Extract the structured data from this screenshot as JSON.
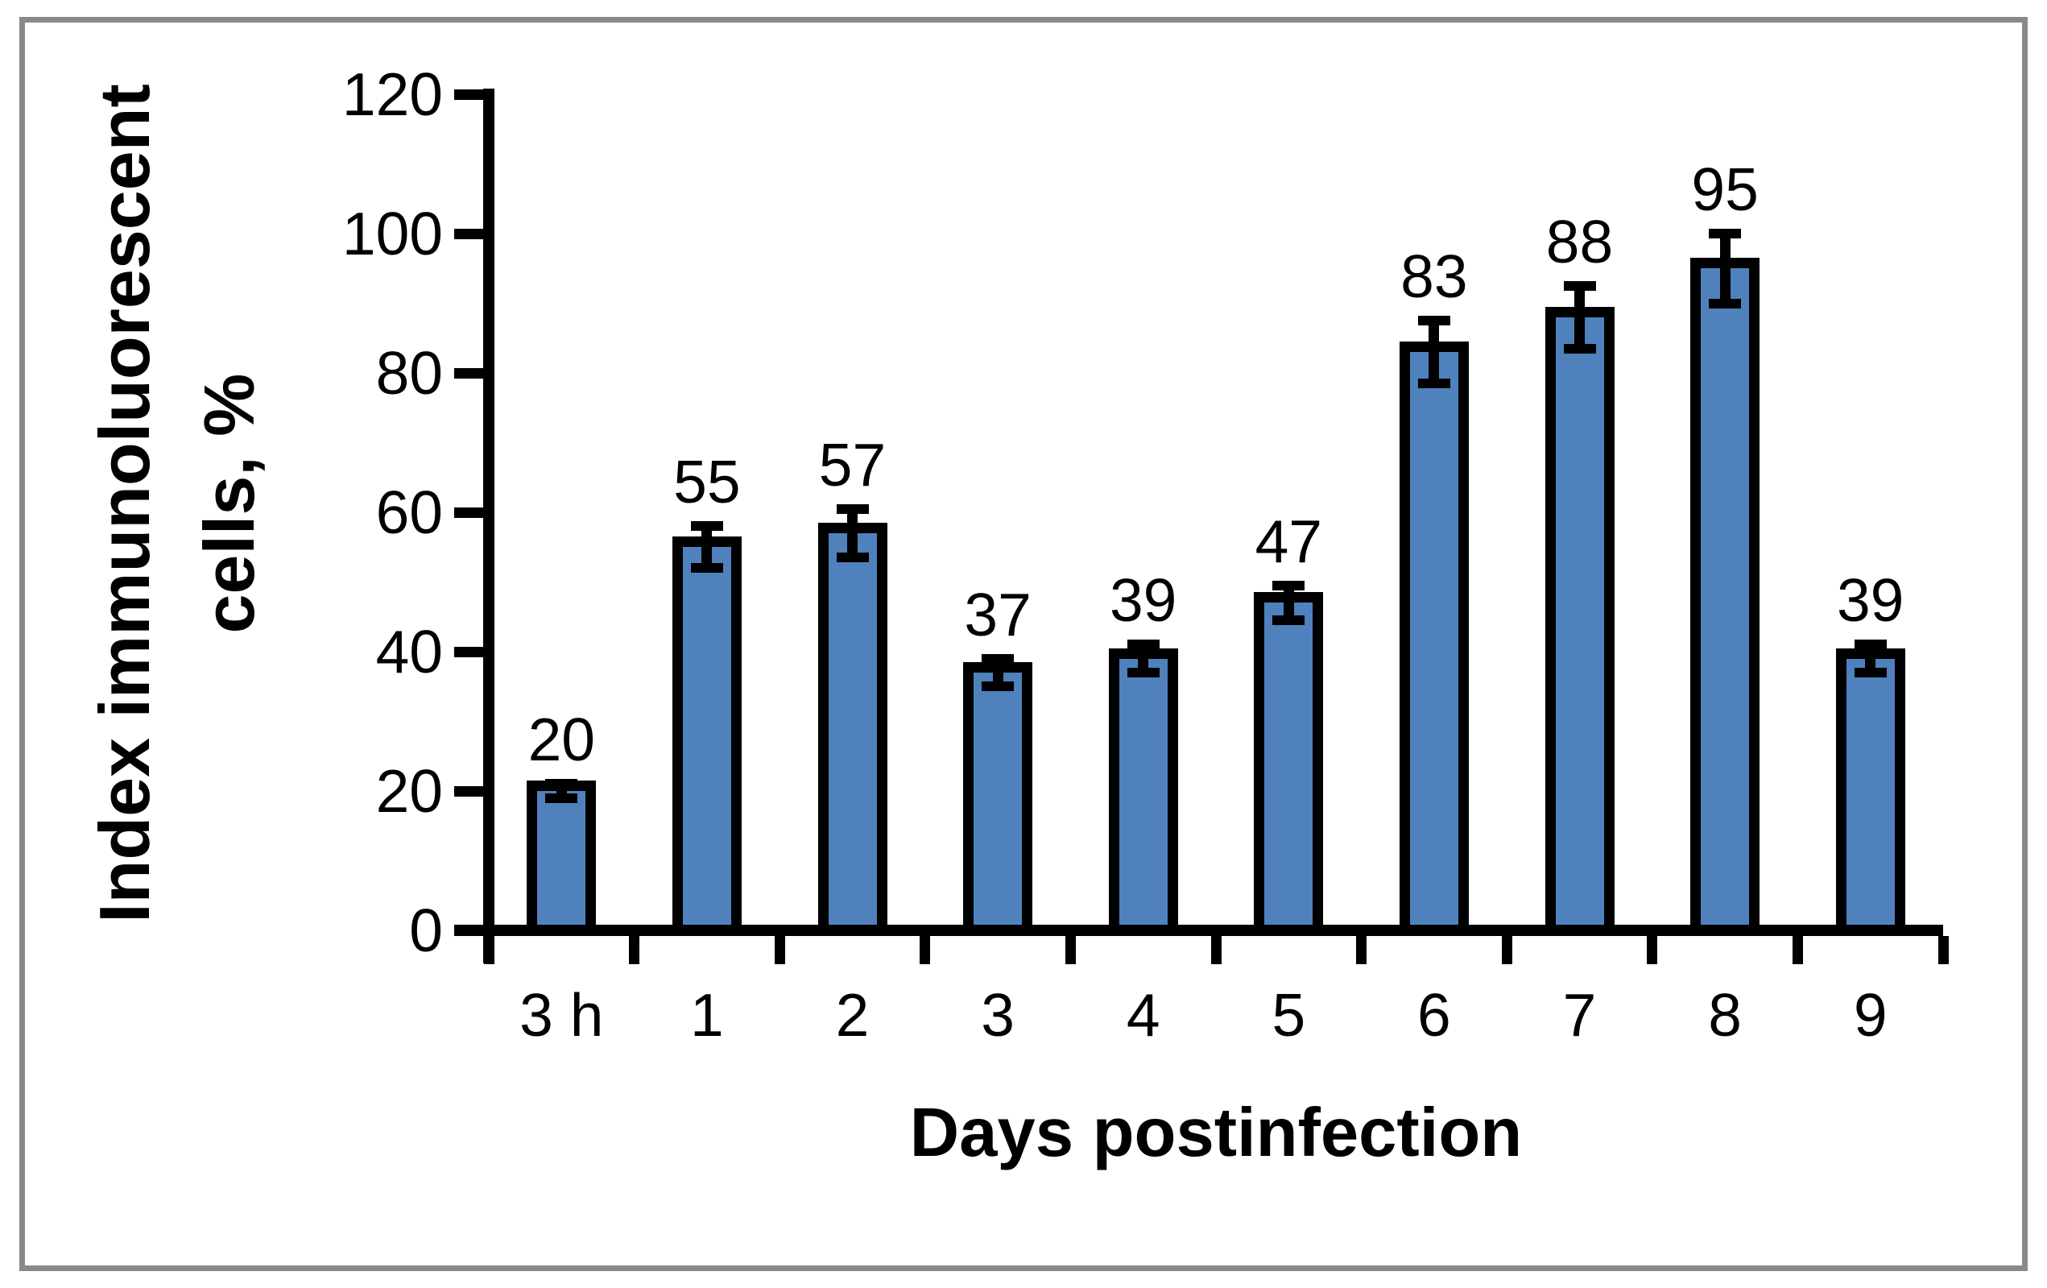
{
  "figure": {
    "background": "#ffffff",
    "frame_color": "#898989"
  },
  "chart_data": {
    "type": "bar",
    "title": "",
    "categories": [
      "3 h",
      "1",
      "2",
      "3",
      "4",
      "5",
      "6",
      "7",
      "8",
      "9"
    ],
    "values": [
      20,
      55,
      57,
      37,
      39,
      47,
      83,
      88,
      95,
      39
    ],
    "data_labels": [
      "20",
      "55",
      "57",
      "37",
      "39",
      "47",
      "83",
      "88",
      "95",
      "39"
    ],
    "error_bars": [
      1,
      3,
      3.5,
      2,
      2,
      2.5,
      4.5,
      4.5,
      5,
      2
    ],
    "xlabel": "Days postinfection",
    "ylabel": "Index immunoluorescent cells, %",
    "ylabel_lines": [
      "Index immunoluorescent",
      "cells, %"
    ],
    "ylim": [
      0,
      120
    ],
    "yticks": [
      "0",
      "20",
      "40",
      "60",
      "80",
      "100",
      "120"
    ],
    "grid": false,
    "legend": "none",
    "bar_fill": "#4F81BD",
    "bar_border": "#000000",
    "axis_color": "#000000"
  }
}
